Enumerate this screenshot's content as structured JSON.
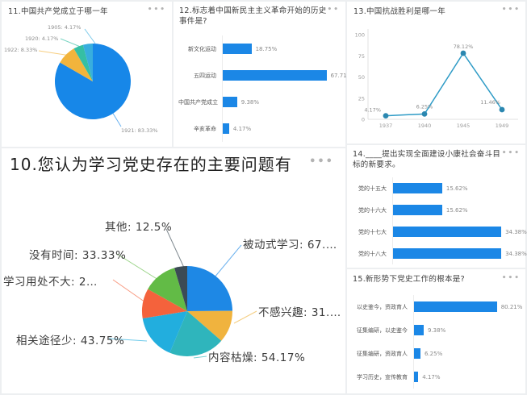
{
  "ui": {
    "menu_dots": "•••"
  },
  "chart_data": [
    {
      "id": "q11",
      "type": "pie",
      "title": "11.中国共产党成立于哪一年",
      "categories": [
        "1921",
        "1922",
        "1920",
        "1905"
      ],
      "values": [
        83.33,
        8.33,
        4.17,
        4.17
      ],
      "labels_display": [
        "1921: 83.33%",
        "1922: 8.33%",
        "1920: 4.17%",
        "1905: 4.17%"
      ],
      "colors": [
        "#1787e8",
        "#f2b43c",
        "#35bfa4",
        "#38aede"
      ],
      "legend_position": "none"
    },
    {
      "id": "q12",
      "type": "bar",
      "orientation": "horizontal",
      "title": "12.标志着中国新民主主义革命开始的历史事件是?",
      "categories": [
        "新文化运动",
        "五四运动",
        "中国共产党成立",
        "辛亥革命"
      ],
      "values": [
        18.75,
        67.71,
        9.38,
        4.17
      ],
      "labels_display": [
        "18.75%",
        "67.71%",
        "9.38%",
        "4.17%"
      ],
      "bar_color": "#1b87e6"
    },
    {
      "id": "q13",
      "type": "line",
      "title": "13.中国抗战胜利是哪一年",
      "x": [
        "1937",
        "1940",
        "1945",
        "1949"
      ],
      "values": [
        4.17,
        6.25,
        78.12,
        11.46
      ],
      "labels_display": [
        "4.17%",
        "6.25%",
        "78.12%",
        "11.46%"
      ],
      "ylim": [
        0,
        100
      ],
      "y_ticks": [
        0,
        25,
        50,
        75,
        100
      ],
      "line_color": "#2e9bc6",
      "marker_color": "#2b87b0",
      "grid": false
    },
    {
      "id": "q10",
      "type": "pie",
      "title": "10.您认为学习党史存在的主要问题有",
      "categories": [
        "被动式学习",
        "不感兴趣",
        "内容枯燥",
        "相关途径少",
        "学习用处不大",
        "没有时间",
        "其他"
      ],
      "values": [
        67.71,
        31.25,
        54.17,
        43.75,
        29.17,
        33.33,
        12.5
      ],
      "labels_display": [
        "被动式学习: 67.…",
        "不感兴趣: 31.…",
        "内容枯燥: 54.17%",
        "相关途径少: 43.75%",
        "学习用处不大: 2…",
        "没有时间: 33.33%",
        "其他: 12.5%"
      ],
      "colors": [
        "#1e88e5",
        "#f0b33e",
        "#2fb5bc",
        "#22aede",
        "#f4623c",
        "#62bb46",
        "#3c4b55"
      ],
      "legend_position": "none"
    },
    {
      "id": "q14",
      "type": "bar",
      "orientation": "horizontal",
      "title": "14.____提出实现全面建设小康社会奋斗目标的新要求。",
      "categories": [
        "党的十五大",
        "党的十六大",
        "党的十七大",
        "党的十八大"
      ],
      "values": [
        15.62,
        15.62,
        34.38,
        34.38
      ],
      "labels_display": [
        "15.62%",
        "15.62%",
        "34.38%",
        "34.38%"
      ],
      "bar_color": "#1b87e6"
    },
    {
      "id": "q15",
      "type": "bar",
      "orientation": "horizontal",
      "title": "15.新形势下党史工作的根本是?",
      "categories": [
        "以史鉴今，资政育人",
        "征集编研，以史鉴今",
        "征集编研，资政育人",
        "学习历史，宣传教育"
      ],
      "values": [
        80.21,
        9.38,
        6.25,
        4.17
      ],
      "labels_display": [
        "80.21%",
        "9.38%",
        "6.25%",
        "4.17%"
      ],
      "bar_color": "#1b87e6"
    }
  ]
}
